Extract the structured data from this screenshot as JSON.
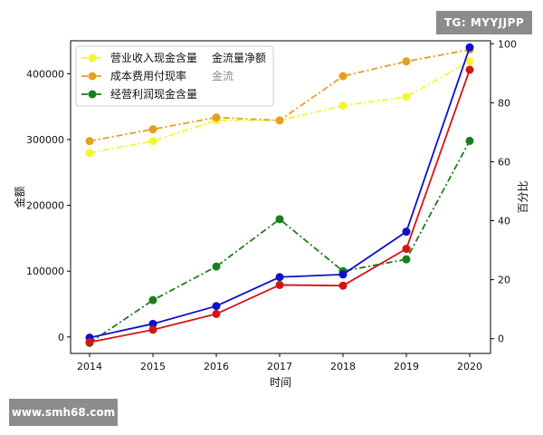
{
  "watermarks": {
    "top_right": "TG: MYYJJPP",
    "bottom_left": "www.smh68.com"
  },
  "chart_data": {
    "type": "line",
    "x": [
      "2014",
      "2015",
      "2016",
      "2017",
      "2018",
      "2019",
      "2020"
    ],
    "xlabel": "时间",
    "ylabel_left": "金额",
    "ylabel_right": "百分比",
    "ylim_left": [
      -25000,
      450000
    ],
    "ylim_right": [
      -5,
      101
    ],
    "yticks_left": [
      0,
      100000,
      200000,
      300000,
      400000
    ],
    "yticks_right": [
      0,
      20,
      40,
      60,
      80,
      100
    ],
    "legend_placement": "top-left",
    "grid": false,
    "series": [
      {
        "name": "营业收入现金含量",
        "axis": "right",
        "color": "#f5f532",
        "style": "dashdot",
        "values": [
          63,
          67,
          74,
          74,
          79,
          82,
          94
        ]
      },
      {
        "name": "成本费用付现率",
        "axis": "right",
        "color": "#e5a020",
        "style": "dashdot",
        "values": [
          67,
          71,
          75,
          74,
          89,
          94,
          98
        ]
      },
      {
        "name": "经营利润现金含量",
        "axis": "left",
        "color": "#1a7f1a",
        "style": "dashdot",
        "values": [
          -9000,
          56000,
          107000,
          179000,
          100000,
          118000,
          298000
        ]
      },
      {
        "name": "",
        "axis": "left",
        "color": "#1010c8",
        "style": "solid",
        "values": [
          -1000,
          20000,
          47000,
          91000,
          95000,
          160000,
          440000
        ]
      },
      {
        "name": "",
        "axis": "left",
        "color": "#d41414",
        "style": "solid",
        "values": [
          -8000,
          11000,
          35000,
          79000,
          78000,
          134000,
          406000
        ]
      }
    ],
    "legend_occluded_fragments": [
      "金流量净额",
      "金流"
    ]
  }
}
